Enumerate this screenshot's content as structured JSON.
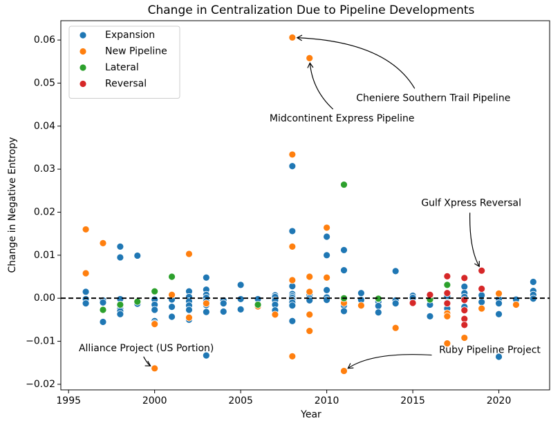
{
  "chart_data": {
    "type": "scatter",
    "title": "Change in Centralization Due to Pipeline Developments",
    "x_label": "Year",
    "y_label": "Change in Negative Entropy",
    "xlim": [
      1994.55,
      2022.95
    ],
    "ylim": [
      -0.0213,
      0.0645
    ],
    "xticks": [
      1995,
      2000,
      2005,
      2010,
      2015,
      2020
    ],
    "yticks": [
      {
        "value": -0.02,
        "label": "−0.02"
      },
      {
        "value": -0.01,
        "label": "−0.01"
      },
      {
        "value": 0,
        "label": "0.00"
      },
      0.01,
      0.02,
      0.03,
      0.04,
      0.05,
      0.06
    ],
    "reference_line": 0,
    "legend": "upper left",
    "series": [
      {
        "name": "Expansion",
        "color": "#1f77b4",
        "x": [
          1996,
          1996,
          1996,
          1997,
          1997,
          1997,
          1998,
          1998,
          1998,
          1998,
          1998,
          1998,
          1998,
          1999,
          1999,
          1999,
          2000,
          2000,
          2000,
          2000,
          2000,
          2001,
          2001,
          2001,
          2002,
          2002,
          2002,
          2002,
          2002,
          2002,
          2003,
          2003,
          2003,
          2003,
          2003,
          2003,
          2003,
          2003,
          2004,
          2004,
          2004,
          2005,
          2005,
          2005,
          2006,
          2007,
          2007,
          2007,
          2007,
          2007,
          2008,
          2008,
          2008,
          2008,
          2008,
          2008,
          2008,
          2008,
          2008,
          2008,
          2009,
          2009,
          2009,
          2010,
          2010,
          2010,
          2010,
          2010,
          2011,
          2011,
          2011,
          2011,
          2012,
          2012,
          2013,
          2013,
          2013,
          2014,
          2014,
          2014,
          2015,
          2015,
          2016,
          2016,
          2016,
          2017,
          2017,
          2017,
          2018,
          2018,
          2018,
          2018,
          2018,
          2019,
          2019,
          2020,
          2020,
          2020,
          2020,
          2021,
          2022,
          2022,
          2022,
          2022
        ],
        "values": [
          0.0015,
          -0.0002,
          -0.0012,
          -0.0055,
          -0.0005,
          -0.001,
          0.012,
          0.0095,
          -0.0002,
          -0.0015,
          -0.0025,
          -0.003,
          -0.0037,
          0.0099,
          -0.001,
          -0.0013,
          -0.0003,
          -0.0015,
          -0.0027,
          -0.0053,
          -0.0058,
          -0.0003,
          -0.002,
          -0.0043,
          0.0016,
          0.0003,
          -0.0007,
          -0.0017,
          -0.0027,
          -0.005,
          0.0048,
          0.002,
          0.0008,
          0.0001,
          -0.0007,
          -0.0016,
          -0.0032,
          -0.0133,
          -0.0005,
          -0.0012,
          -0.0031,
          0.0031,
          -0.0002,
          -0.0026,
          -0.0002,
          0.0007,
          0.0003,
          -0.0005,
          -0.0015,
          -0.0028,
          0.0307,
          0.0156,
          0.0028,
          0.001,
          0.0005,
          0.0001,
          -0.0004,
          -0.001,
          -0.0017,
          -0.0053,
          0.0008,
          0,
          -0.0005,
          0.0143,
          0.01,
          0.0019,
          0.0002,
          -0.0004,
          0.0112,
          0.0065,
          -0.0017,
          -0.003,
          0.0012,
          -0.0004,
          -0.0008,
          -0.0018,
          -0.0033,
          0.0063,
          -0.0005,
          -0.0012,
          0.0006,
          0.0001,
          0,
          -0.0015,
          -0.0042,
          0.0005,
          -0.001,
          -0.0024,
          0.0027,
          0.0012,
          0.0003,
          -0.0005,
          -0.002,
          0.0007,
          -0.0009,
          -0.0002,
          -0.0012,
          -0.0037,
          -0.0136,
          -0.0003,
          0.0038,
          0.0017,
          0.0008,
          -0.0001
        ]
      },
      {
        "name": "New Pipeline",
        "color": "#ff7f0e",
        "x": [
          1996,
          1996,
          1997,
          2000,
          2000,
          2001,
          2002,
          2002,
          2003,
          2006,
          2007,
          2008,
          2008,
          2008,
          2008,
          2008,
          2009,
          2009,
          2009,
          2009,
          2009,
          2010,
          2010,
          2011,
          2011,
          2012,
          2014,
          2017,
          2017,
          2017,
          2018,
          2019,
          2020,
          2021
        ],
        "values": [
          0.016,
          0.0058,
          0.0128,
          -0.0163,
          -0.006,
          0.0008,
          0.0103,
          -0.0045,
          -0.0012,
          -0.0019,
          -0.0038,
          0.0606,
          0.0334,
          0.012,
          0.0042,
          -0.0135,
          0.0558,
          0.005,
          0.0015,
          -0.0038,
          -0.0076,
          0.0164,
          0.0048,
          -0.0011,
          -0.0169,
          -0.0017,
          -0.0069,
          -0.0035,
          -0.0042,
          -0.0105,
          -0.0092,
          -0.0024,
          0.0011,
          -0.0015
        ]
      },
      {
        "name": "Lateral",
        "color": "#2ca02c",
        "x": [
          1997,
          1998,
          1999,
          2000,
          2001,
          2006,
          2011,
          2011,
          2013,
          2016,
          2017
        ],
        "values": [
          -0.0027,
          -0.0015,
          -0.0008,
          0.0016,
          0.005,
          -0.0015,
          0.0264,
          0,
          -0.0001,
          -0.0003,
          0.0031
        ]
      },
      {
        "name": "Reversal",
        "color": "#d62728",
        "x": [
          2015,
          2016,
          2017,
          2017,
          2017,
          2018,
          2018,
          2018,
          2018,
          2018,
          2019,
          2019
        ],
        "values": [
          -0.0011,
          0.0008,
          0.0051,
          0.0012,
          -0.0012,
          0.0047,
          -0.0004,
          -0.0028,
          -0.0048,
          -0.0062,
          0.0064,
          0.0022
        ]
      }
    ],
    "annotations": [
      {
        "text": "Cheniere Southern Trail Pipeline",
        "x": 2008,
        "y": 0.0606
      },
      {
        "text": "Midcontinent Express Pipeline",
        "x": 2009,
        "y": 0.0558
      },
      {
        "text": "Gulf Xpress Reversal",
        "x": 2019,
        "y": 0.0064
      },
      {
        "text": "Ruby Pipeline Project",
        "x": 2011,
        "y": -0.0169
      },
      {
        "text": "Alliance Project (US Portion)",
        "x": 2000,
        "y": -0.0163
      }
    ]
  }
}
